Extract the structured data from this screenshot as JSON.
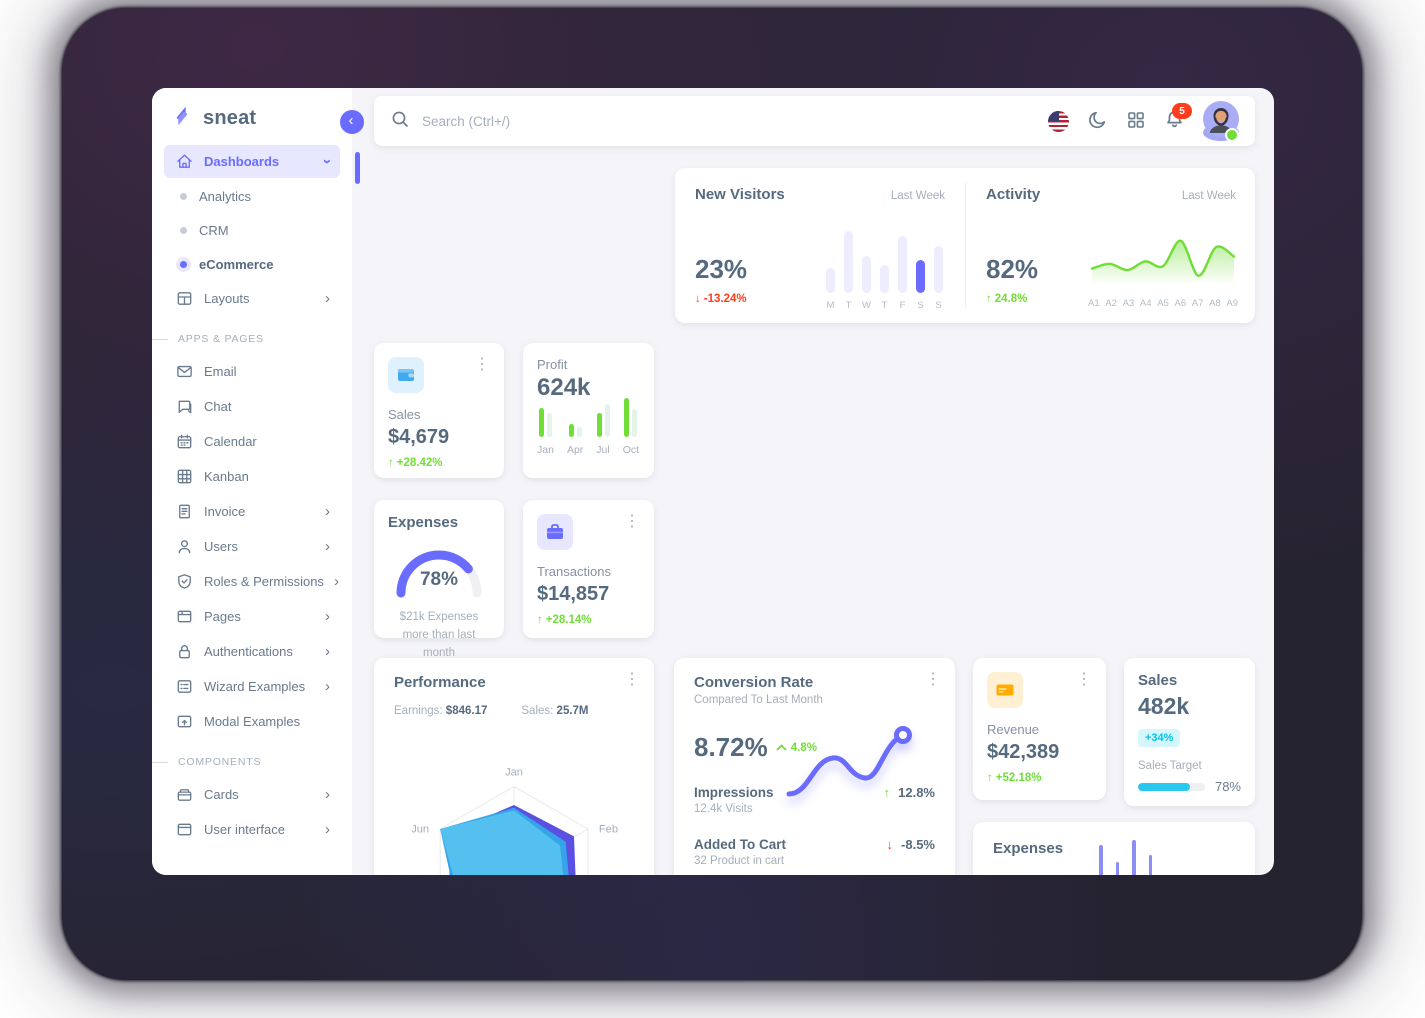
{
  "app": {
    "name": "sneat"
  },
  "colors": {
    "primary": "#696cff",
    "success": "#71dd37",
    "danger": "#ff3e1d",
    "warning": "#ffab00",
    "info": "#03c3ec",
    "heading": "#566a7f"
  },
  "sidebar": {
    "logo_text": "sneat",
    "items": [
      {
        "label": "Dashboards",
        "icon": "home-icon",
        "type": "item",
        "active": true,
        "chevron": "down"
      },
      {
        "label": "Analytics",
        "type": "sub"
      },
      {
        "label": "CRM",
        "type": "sub"
      },
      {
        "label": "eCommerce",
        "type": "sub",
        "active": true
      },
      {
        "label": "Layouts",
        "icon": "layout-icon",
        "type": "item",
        "chevron": "right"
      },
      {
        "label": "APPS & PAGES",
        "type": "header"
      },
      {
        "label": "Email",
        "icon": "mail-icon",
        "type": "item"
      },
      {
        "label": "Chat",
        "icon": "chat-icon",
        "type": "item"
      },
      {
        "label": "Calendar",
        "icon": "calendar-icon",
        "type": "item"
      },
      {
        "label": "Kanban",
        "icon": "kanban-icon",
        "type": "item"
      },
      {
        "label": "Invoice",
        "icon": "invoice-icon",
        "type": "item",
        "chevron": "right"
      },
      {
        "label": "Users",
        "icon": "user-icon",
        "type": "item",
        "chevron": "right"
      },
      {
        "label": "Roles & Permissions",
        "icon": "shield-icon",
        "type": "item",
        "chevron": "right"
      },
      {
        "label": "Pages",
        "icon": "pages-icon",
        "type": "item",
        "chevron": "right"
      },
      {
        "label": "Authentications",
        "icon": "lock-icon",
        "type": "item",
        "chevron": "right"
      },
      {
        "label": "Wizard Examples",
        "icon": "wizard-icon",
        "type": "item",
        "chevron": "right"
      },
      {
        "label": "Modal Examples",
        "icon": "modal-icon",
        "type": "item"
      },
      {
        "label": "COMPONENTS",
        "type": "header"
      },
      {
        "label": "Cards",
        "icon": "cards-icon",
        "type": "item",
        "chevron": "right"
      },
      {
        "label": "User interface",
        "icon": "ui-icon",
        "type": "item",
        "chevron": "right"
      }
    ]
  },
  "topbar": {
    "search_placeholder": "Search (Ctrl+/)",
    "notification_count": "5"
  },
  "cards": {
    "new_visitors": {
      "title": "New Visitors",
      "period": "Last Week",
      "value": "23%",
      "delta": "-13.24%",
      "direction": "down",
      "days": [
        "M",
        "T",
        "W",
        "T",
        "F",
        "S",
        "S"
      ],
      "values": [
        40,
        100,
        60,
        45,
        92,
        53,
        76
      ],
      "highlight_index": 5
    },
    "activity": {
      "title": "Activity",
      "period": "Last Week",
      "value": "82%",
      "delta": "24.8%",
      "direction": "up",
      "labels": [
        "A1",
        "A2",
        "A3",
        "A4",
        "A5",
        "A6",
        "A7",
        "A8",
        "A9"
      ],
      "values": [
        30,
        40,
        27,
        45,
        35,
        88,
        15,
        75,
        55
      ]
    },
    "sales_card": {
      "label": "Sales",
      "value": "$4,679",
      "delta": "+28.42%",
      "direction": "up",
      "icon": "wallet-icon"
    },
    "profit_card": {
      "label": "Profit",
      "value": "624k",
      "months": [
        "Jan",
        "Apr",
        "Jul",
        "Oct"
      ],
      "current": [
        29,
        13,
        24,
        39
      ],
      "previous": [
        24,
        10,
        33,
        28
      ]
    },
    "expenses_gauge": {
      "title": "Expenses",
      "value": "78%",
      "percent": 78,
      "caption": "$21k Expenses more than last month"
    },
    "transactions_card": {
      "label": "Transactions",
      "value": "$14,857",
      "delta": "+28.14%",
      "direction": "up",
      "icon": "briefcase-icon"
    },
    "performance": {
      "title": "Performance",
      "earnings_label": "Earnings:",
      "earnings_value": "$846.17",
      "sales_label": "Sales:",
      "sales_value": "25.7M",
      "radar_labels": [
        "Jan",
        "Feb",
        "Jun"
      ]
    },
    "conversion": {
      "title": "Conversion Rate",
      "subtitle": "Compared To Last Month",
      "value": "8.72%",
      "delta": "4.8%",
      "direction": "up",
      "rows": [
        {
          "label": "Impressions",
          "caption": "12.4k Visits",
          "delta": "12.8%",
          "direction": "up"
        },
        {
          "label": "Added To Cart",
          "caption": "32 Product in cart",
          "delta": "-8.5%",
          "direction": "down"
        }
      ]
    },
    "revenue_card": {
      "label": "Revenue",
      "value": "$42,389",
      "delta": "+52.18%",
      "direction": "up",
      "icon": "credit-card-icon"
    },
    "sales_target_card": {
      "title": "Sales",
      "value": "482k",
      "badge": "+34%",
      "target_label": "Sales Target",
      "percent": 78,
      "percent_label": "78%"
    },
    "expenses_bottom": {
      "title": "Expenses",
      "values": [
        75,
        58,
        80,
        65
      ]
    }
  }
}
